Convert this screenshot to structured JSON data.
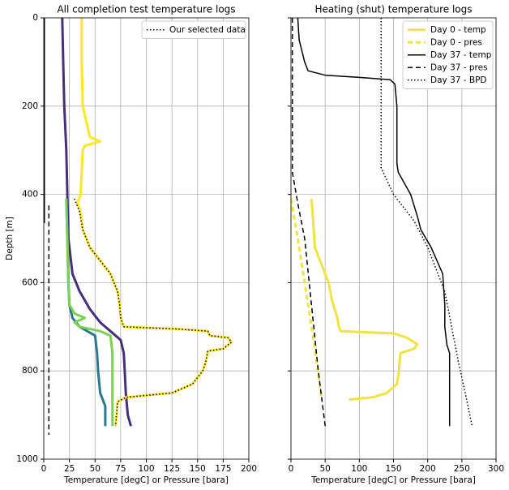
{
  "chart_data": [
    {
      "type": "line",
      "title": "All completion test temperature logs",
      "xlabel": "Temperature [degC] or Pressure [bara]",
      "ylabel": "Depth [m]",
      "xlim": [
        0,
        200
      ],
      "ylim": [
        1000,
        0
      ],
      "xticks": [
        0,
        25,
        50,
        75,
        100,
        125,
        150,
        175,
        200
      ],
      "yticks": [
        0,
        200,
        400,
        600,
        800,
        1000
      ],
      "show_ytick_labels": true,
      "grid": true,
      "legend": "upper right",
      "series": [
        {
          "color": "#000000",
          "style": "solid",
          "width": 3,
          "x": [
            0,
            0
          ],
          "y": [
            0,
            465
          ]
        },
        {
          "color": "#000000",
          "style": "dashed",
          "width": 1.5,
          "x": [
            5,
            5
          ],
          "y": [
            425,
            945
          ]
        },
        {
          "color": "#472d7b",
          "style": "solid",
          "width": 3,
          "x": [
            18,
            19,
            20,
            22,
            23,
            24,
            28,
            35,
            45,
            55,
            65,
            75,
            78,
            79,
            80,
            82,
            85
          ],
          "y": [
            0,
            100,
            200,
            300,
            400,
            500,
            580,
            620,
            660,
            690,
            710,
            730,
            760,
            800,
            850,
            900,
            925
          ]
        },
        {
          "color": "#fde725",
          "style": "solid",
          "width": 3,
          "x": [
            37,
            37,
            38,
            45,
            55,
            40,
            38,
            37,
            36,
            33,
            36,
            38,
            45,
            55,
            65,
            72,
            74,
            75,
            78,
            130,
            160,
            162,
            180,
            183,
            175,
            160,
            158,
            155,
            145,
            125,
            80,
            72,
            70
          ],
          "y": [
            0,
            100,
            200,
            270,
            280,
            290,
            300,
            350,
            400,
            420,
            440,
            480,
            520,
            550,
            580,
            620,
            650,
            680,
            700,
            705,
            710,
            720,
            725,
            735,
            750,
            755,
            780,
            800,
            830,
            850,
            860,
            870,
            925
          ]
        },
        {
          "color": "#2a788e",
          "style": "solid",
          "width": 3,
          "x": [
            22,
            23,
            24,
            25,
            28,
            35,
            50,
            52,
            53,
            55,
            60,
            60
          ],
          "y": [
            410,
            500,
            600,
            650,
            680,
            700,
            720,
            760,
            800,
            850,
            880,
            925
          ]
        },
        {
          "color": "#7ad151",
          "style": "solid",
          "width": 3,
          "x": [
            22,
            24,
            25,
            30,
            40,
            30,
            35,
            55,
            65,
            67,
            67,
            67
          ],
          "y": [
            410,
            600,
            650,
            670,
            680,
            690,
            700,
            710,
            720,
            760,
            850,
            925
          ]
        },
        {
          "name": "Our selected data",
          "color": "#000000",
          "style": "dotted",
          "width": 1.5,
          "x": [
            30,
            35,
            38,
            45,
            55,
            65,
            72,
            74,
            75,
            78,
            130,
            160,
            162,
            180,
            183,
            175,
            160,
            158,
            155,
            145,
            125,
            80,
            72,
            70
          ],
          "y": [
            410,
            440,
            480,
            520,
            550,
            580,
            620,
            650,
            680,
            700,
            705,
            710,
            720,
            725,
            735,
            750,
            755,
            780,
            800,
            830,
            850,
            860,
            870,
            925
          ]
        }
      ]
    },
    {
      "type": "line",
      "title": "Heating (shut) temperature logs",
      "xlabel": "Temperature [degC] or Pressure [bara]",
      "xlim": [
        0,
        300
      ],
      "ylim": [
        1000,
        0
      ],
      "xticks": [
        0,
        50,
        100,
        150,
        200,
        250,
        300
      ],
      "yticks": [
        0,
        200,
        400,
        600,
        800,
        1000
      ],
      "show_ytick_labels": false,
      "grid": true,
      "legend": "upper right",
      "series": [
        {
          "name": "Day 0 - temp",
          "color": "#f0e442",
          "style": "solid",
          "width": 3,
          "x": [
            30,
            32,
            35,
            45,
            55,
            60,
            68,
            70,
            73,
            150,
            160,
            170,
            185,
            180,
            160,
            158,
            155,
            140,
            120,
            85
          ],
          "y": [
            410,
            450,
            520,
            560,
            600,
            640,
            680,
            700,
            710,
            715,
            720,
            725,
            740,
            750,
            760,
            800,
            830,
            850,
            860,
            865
          ]
        },
        {
          "name": "Day 0 - pres",
          "color": "#f0e442",
          "style": "dashed",
          "width": 3,
          "x": [
            0,
            10,
            25,
            35,
            45
          ],
          "y": [
            410,
            500,
            650,
            750,
            865
          ]
        },
        {
          "name": "Day 37 - temp",
          "color": "#000000",
          "style": "solid",
          "width": 1.5,
          "x": [
            10,
            12,
            20,
            25,
            50,
            100,
            145,
            152,
            155,
            155,
            157,
            175,
            185,
            190,
            205,
            222,
            225,
            225,
            228,
            232,
            232
          ],
          "y": [
            0,
            50,
            100,
            120,
            130,
            135,
            140,
            150,
            200,
            330,
            350,
            400,
            450,
            480,
            520,
            580,
            650,
            700,
            740,
            760,
            925
          ]
        },
        {
          "name": "Day 37 - pres",
          "color": "#000000",
          "style": "dashed",
          "width": 1.5,
          "x": [
            2,
            2,
            10,
            20,
            30,
            40,
            50
          ],
          "y": [
            0,
            350,
            420,
            500,
            650,
            800,
            925
          ]
        },
        {
          "name": "Day 37 - BPD",
          "color": "#000000",
          "style": "dotted",
          "width": 1.5,
          "x": [
            132,
            132,
            150,
            180,
            200,
            215,
            225,
            235,
            245,
            255,
            265
          ],
          "y": [
            0,
            340,
            400,
            460,
            520,
            580,
            620,
            700,
            780,
            850,
            925
          ]
        }
      ]
    }
  ]
}
